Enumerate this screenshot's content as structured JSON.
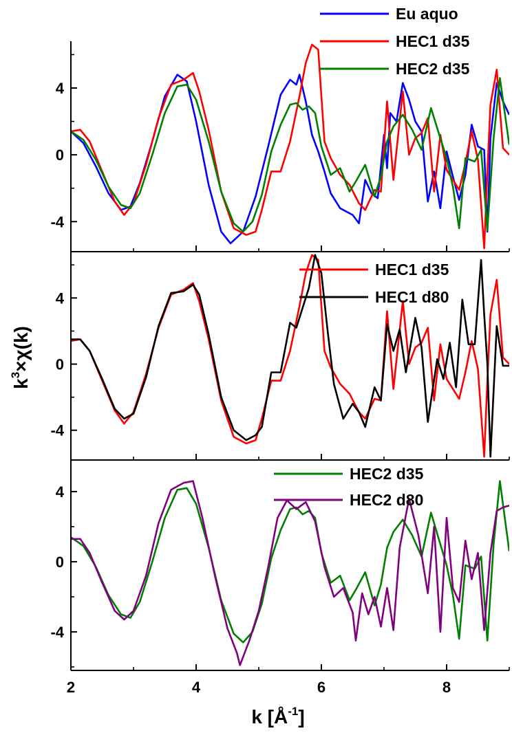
{
  "chart_data": {
    "type": "line",
    "xlabel": {
      "main": "k [Å",
      "sup": "-1",
      "close": "]"
    },
    "ylabel": {
      "k": "k",
      "exp": "3",
      "rest": "×χ(k)"
    },
    "xlim": [
      2,
      9
    ],
    "x_ticks": [
      "2",
      "4",
      "6",
      "8"
    ],
    "y_ticks": [
      "-4",
      "0",
      "4"
    ],
    "panels": [
      {
        "ylim": [
          -5.8,
          6.8
        ],
        "legend_placement": "top-right",
        "series": [
          {
            "name": "Eu aquo",
            "color": "#0000ff",
            "x": [
              2,
              2.2,
              2.4,
              2.6,
              2.8,
              2.95,
              3.1,
              3.3,
              3.5,
              3.7,
              3.85,
              4.0,
              4.2,
              4.4,
              4.55,
              4.75,
              4.95,
              5.15,
              5.35,
              5.5,
              5.6,
              5.65,
              5.75,
              5.85,
              5.95,
              6.05,
              6.15,
              6.3,
              6.5,
              6.6,
              6.7,
              6.8,
              6.9,
              7.0,
              7.05,
              7.1,
              7.2,
              7.3,
              7.4,
              7.5,
              7.6,
              7.7,
              7.8,
              7.9,
              8.0,
              8.1,
              8.2,
              8.3,
              8.4,
              8.5,
              8.6,
              8.65,
              8.7,
              8.8,
              8.9,
              9.0
            ],
            "y": [
              1.4,
              0.7,
              -0.7,
              -2.3,
              -3.3,
              -3.1,
              -1.7,
              0.8,
              3.5,
              4.8,
              4.4,
              2.0,
              -1.8,
              -4.6,
              -5.3,
              -4.6,
              -2.5,
              0.5,
              3.6,
              4.5,
              4.2,
              4.8,
              3.2,
              1.2,
              0.2,
              -1.0,
              -2.3,
              -3.2,
              -3.6,
              -4.1,
              -1.5,
              -2.3,
              -2.6,
              1.2,
              -0.8,
              2.5,
              2.0,
              4.3,
              3.3,
              2.0,
              1.4,
              -2.8,
              -1.0,
              -3.2,
              0.2,
              -1.3,
              -2.7,
              -1.2,
              1.8,
              0.5,
              0.3,
              -4.6,
              1.0,
              4.3,
              3.2,
              2.4
            ]
          },
          {
            "name": "HEC1 d35",
            "color": "#ff0000",
            "x": [
              2,
              2.15,
              2.3,
              2.5,
              2.7,
              2.85,
              3.0,
              3.2,
              3.4,
              3.6,
              3.8,
              3.95,
              4.05,
              4.2,
              4.4,
              4.6,
              4.8,
              4.95,
              5.05,
              5.2,
              5.35,
              5.5,
              5.65,
              5.75,
              5.85,
              5.95,
              6.05,
              6.15,
              6.3,
              6.45,
              6.6,
              6.7,
              6.85,
              6.95,
              7.05,
              7.15,
              7.3,
              7.4,
              7.5,
              7.6,
              7.7,
              7.8,
              7.9,
              8.0,
              8.1,
              8.2,
              8.3,
              8.4,
              8.5,
              8.6,
              8.65,
              8.7,
              8.8,
              8.9,
              9.0
            ],
            "y": [
              1.4,
              1.5,
              0.8,
              -1.0,
              -2.8,
              -3.6,
              -2.9,
              -0.6,
              2.2,
              4.2,
              4.5,
              4.9,
              3.8,
              1.5,
              -2.2,
              -4.4,
              -4.8,
              -4.6,
              -3.3,
              -1.0,
              -1.0,
              0.8,
              3.5,
              5.5,
              6.6,
              6.3,
              0.8,
              -0.2,
              -1.2,
              -1.8,
              -2.9,
              -3.3,
              -2.1,
              -2.2,
              3.2,
              -1.5,
              3.8,
              0.0,
              1.0,
              1.3,
              2.2,
              -2.2,
              1.2,
              -0.9,
              -1.5,
              -2.1,
              -0.5,
              1.4,
              -0.3,
              -5.6,
              -1.0,
              3.0,
              5.1,
              0.4,
              0.0
            ]
          },
          {
            "name": "HEC2 d35",
            "color": "#008000",
            "x": [
              2,
              2.2,
              2.4,
              2.6,
              2.8,
              2.95,
              3.1,
              3.3,
              3.5,
              3.7,
              3.85,
              4.0,
              4.2,
              4.4,
              4.6,
              4.75,
              4.9,
              5.05,
              5.2,
              5.35,
              5.5,
              5.6,
              5.7,
              5.8,
              5.9,
              6.0,
              6.15,
              6.3,
              6.45,
              6.55,
              6.7,
              6.85,
              6.95,
              7.05,
              7.15,
              7.3,
              7.45,
              7.6,
              7.75,
              7.85,
              8.0,
              8.1,
              8.2,
              8.3,
              8.45,
              8.55,
              8.65,
              8.75,
              8.85,
              9.0
            ],
            "y": [
              1.4,
              0.9,
              -0.3,
              -1.9,
              -3.0,
              -3.2,
              -2.3,
              0.0,
              2.5,
              4.1,
              4.2,
              3.3,
              0.8,
              -2.2,
              -4.1,
              -4.6,
              -4.0,
              -2.4,
              0.2,
              1.8,
              3.0,
              3.1,
              2.7,
              2.9,
              2.5,
              0.5,
              -1.2,
              -0.8,
              -2.2,
              -1.6,
              -0.6,
              -2.5,
              -1.3,
              0.8,
              1.7,
              2.4,
              1.5,
              0.3,
              2.8,
              1.6,
              -0.2,
              -1.9,
              -4.4,
              -0.2,
              -0.4,
              0.3,
              -4.5,
              1.0,
              4.6,
              0.6
            ]
          }
        ]
      },
      {
        "ylim": [
          -5.8,
          6.8
        ],
        "legend_placement": "top-right",
        "series": [
          {
            "name": "HEC1 d35",
            "color": "#ff0000",
            "x": [
              2,
              2.15,
              2.3,
              2.5,
              2.7,
              2.85,
              3.0,
              3.2,
              3.4,
              3.6,
              3.8,
              3.95,
              4.05,
              4.2,
              4.4,
              4.6,
              4.8,
              4.95,
              5.05,
              5.2,
              5.35,
              5.5,
              5.65,
              5.75,
              5.85,
              5.95,
              6.05,
              6.15,
              6.3,
              6.45,
              6.6,
              6.7,
              6.85,
              6.95,
              7.05,
              7.15,
              7.3,
              7.4,
              7.5,
              7.6,
              7.7,
              7.8,
              7.9,
              8.0,
              8.1,
              8.2,
              8.3,
              8.4,
              8.5,
              8.6,
              8.65,
              8.7,
              8.8,
              8.9,
              9.0
            ],
            "y": [
              1.4,
              1.5,
              0.8,
              -1.0,
              -2.8,
              -3.6,
              -2.9,
              -0.6,
              2.2,
              4.2,
              4.5,
              4.9,
              3.8,
              1.5,
              -2.2,
              -4.4,
              -4.8,
              -4.6,
              -3.3,
              -1.0,
              -1.0,
              0.8,
              3.5,
              5.5,
              6.6,
              6.3,
              0.8,
              -0.2,
              -1.2,
              -1.8,
              -2.9,
              -3.3,
              -2.1,
              -2.2,
              3.2,
              -1.5,
              3.8,
              0.0,
              1.0,
              1.3,
              2.2,
              -2.2,
              1.2,
              -0.9,
              -1.5,
              -2.1,
              -0.5,
              1.4,
              -0.3,
              -5.6,
              -1.0,
              3.0,
              5.1,
              0.4,
              0.0
            ]
          },
          {
            "name": "HEC1 d80",
            "color": "#000000",
            "x": [
              2,
              2.15,
              2.3,
              2.5,
              2.7,
              2.85,
              3.0,
              3.2,
              3.4,
              3.6,
              3.8,
              3.95,
              4.05,
              4.2,
              4.4,
              4.6,
              4.8,
              4.95,
              5.05,
              5.2,
              5.35,
              5.5,
              5.6,
              5.7,
              5.8,
              5.9,
              6.0,
              6.1,
              6.2,
              6.35,
              6.5,
              6.6,
              6.7,
              6.85,
              6.95,
              7.05,
              7.15,
              7.25,
              7.35,
              7.5,
              7.6,
              7.7,
              7.85,
              7.95,
              8.05,
              8.15,
              8.25,
              8.35,
              8.45,
              8.55,
              8.6,
              8.65,
              8.7,
              8.8,
              8.9,
              9.0
            ],
            "y": [
              1.5,
              1.5,
              0.8,
              -0.9,
              -2.7,
              -3.3,
              -3.0,
              -0.8,
              2.3,
              4.3,
              4.4,
              4.8,
              4.2,
              1.8,
              -2.0,
              -4.0,
              -4.6,
              -4.3,
              -3.8,
              -0.5,
              -0.5,
              2.5,
              2.2,
              3.4,
              4.6,
              6.6,
              5.5,
              2.0,
              -1.2,
              -3.3,
              -2.4,
              -2.9,
              -3.8,
              -1.4,
              -2.2,
              2.4,
              0.8,
              2.1,
              -0.5,
              2.8,
              1.0,
              -3.5,
              0.3,
              -0.9,
              1.3,
              -1.4,
              3.9,
              1.2,
              1.2,
              6.3,
              3.0,
              0.0,
              -5.6,
              2.3,
              -0.1,
              -0.1
            ]
          }
        ]
      },
      {
        "ylim": [
          -6.2,
          5.8
        ],
        "legend_placement": "top-right",
        "series": [
          {
            "name": "HEC2 d35",
            "color": "#008000",
            "x": [
              2,
              2.2,
              2.4,
              2.6,
              2.8,
              2.95,
              3.1,
              3.3,
              3.5,
              3.7,
              3.85,
              4.0,
              4.2,
              4.4,
              4.6,
              4.75,
              4.9,
              5.05,
              5.2,
              5.35,
              5.5,
              5.6,
              5.7,
              5.8,
              5.9,
              6.0,
              6.15,
              6.3,
              6.45,
              6.55,
              6.7,
              6.85,
              6.95,
              7.05,
              7.15,
              7.3,
              7.45,
              7.6,
              7.75,
              7.85,
              8.0,
              8.1,
              8.2,
              8.3,
              8.45,
              8.55,
              8.65,
              8.75,
              8.85,
              9.0
            ],
            "y": [
              1.4,
              0.9,
              -0.3,
              -1.9,
              -3.0,
              -3.2,
              -2.3,
              0.0,
              2.5,
              4.1,
              4.2,
              3.3,
              0.8,
              -2.2,
              -4.1,
              -4.6,
              -4.0,
              -2.4,
              0.2,
              1.8,
              3.0,
              3.1,
              2.7,
              2.9,
              2.5,
              0.5,
              -1.2,
              -0.8,
              -2.2,
              -1.6,
              -0.6,
              -2.5,
              -1.3,
              0.8,
              1.7,
              2.4,
              1.5,
              0.3,
              2.8,
              1.6,
              -0.2,
              -1.9,
              -4.4,
              -0.2,
              -0.4,
              0.3,
              -4.5,
              1.0,
              4.6,
              0.6
            ]
          },
          {
            "name": "HEC2 d80",
            "color": "#800080",
            "x": [
              2,
              2.15,
              2.3,
              2.5,
              2.7,
              2.85,
              3.0,
              3.2,
              3.4,
              3.6,
              3.8,
              3.95,
              4.1,
              4.3,
              4.5,
              4.65,
              4.7,
              4.85,
              5.0,
              5.15,
              5.3,
              5.45,
              5.6,
              5.75,
              5.9,
              6.05,
              6.2,
              6.35,
              6.5,
              6.55,
              6.65,
              6.75,
              6.85,
              6.95,
              7.05,
              7.15,
              7.25,
              7.4,
              7.55,
              7.7,
              7.8,
              7.9,
              8.0,
              8.1,
              8.2,
              8.3,
              8.4,
              8.5,
              8.6,
              8.7,
              8.8,
              8.9,
              9.0
            ],
            "y": [
              1.3,
              1.3,
              0.5,
              -1.2,
              -2.8,
              -3.3,
              -2.8,
              -0.8,
              2.2,
              4.1,
              4.5,
              4.6,
              2.5,
              -0.8,
              -3.8,
              -5.2,
              -5.9,
              -4.5,
              -2.8,
              -0.3,
              2.5,
              3.5,
              3.0,
              3.4,
              2.3,
              -0.3,
              -2.0,
              -1.5,
              -2.9,
              -4.5,
              -1.8,
              -3.0,
              -2.0,
              -3.7,
              -1.5,
              -3.9,
              0.8,
              3.6,
              1.5,
              -1.8,
              2.0,
              -4.0,
              2.5,
              -1.5,
              -2.3,
              1.2,
              -1.0,
              0.5,
              -3.9,
              0.5,
              2.9,
              3.1,
              3.2
            ]
          }
        ]
      }
    ]
  }
}
